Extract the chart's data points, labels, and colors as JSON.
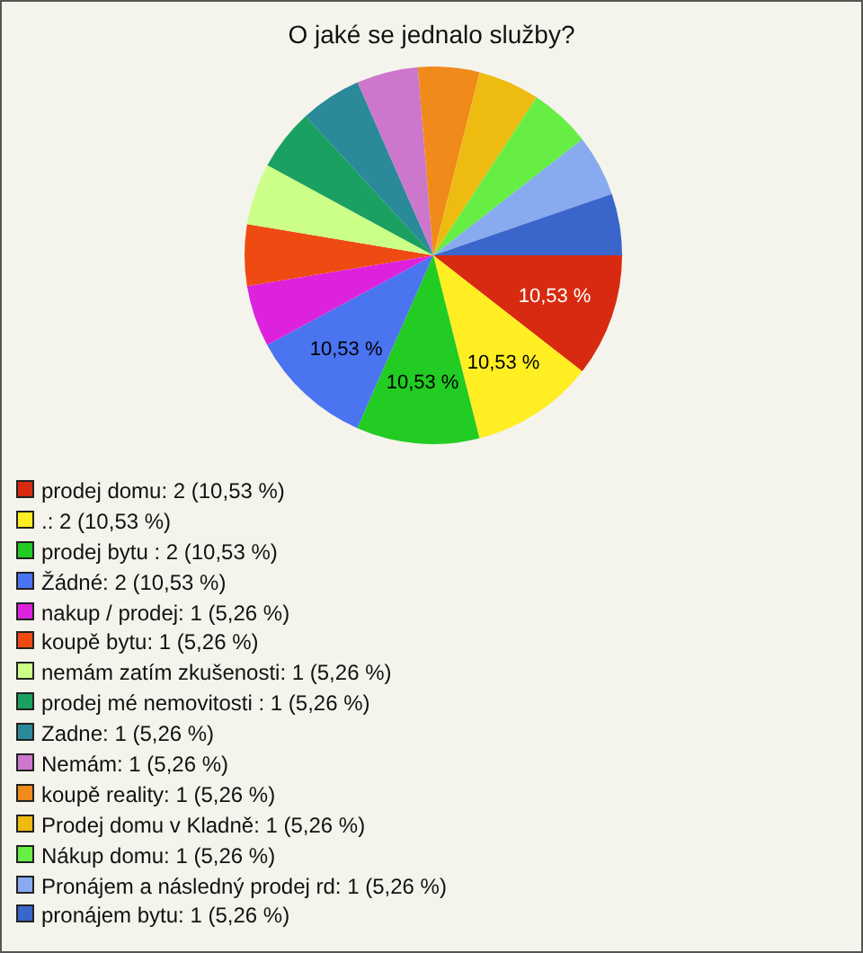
{
  "chart_data": {
    "type": "pie",
    "title": "O jaké se jednalo služby?",
    "categories": [
      "prodej domu: 2 (10,53 %)",
      ".: 2 (10,53 %)",
      "prodej bytu : 2 (10,53 %)",
      "Žádné: 2 (10,53 %)",
      "nakup / prodej: 1 (5,26 %)",
      "koupě bytu: 1 (5,26 %)",
      "nemám zatím zkušenosti: 1 (5,26 %)",
      "prodej mé nemovitosti : 1 (5,26 %)",
      "Zadne: 1 (5,26 %)",
      "Nemám: 1 (5,26 %)",
      "koupě reality: 1 (5,26 %)",
      "Prodej domu v Kladně: 1 (5,26 %)",
      "Nákup domu: 1 (5,26 %)",
      "Pronájem a následný prodej rd: 1 (5,26 %)",
      "pronájem bytu: 1 (5,26 %)"
    ],
    "values": [
      10.53,
      10.53,
      10.53,
      10.53,
      5.26,
      5.26,
      5.26,
      5.26,
      5.26,
      5.26,
      5.26,
      5.26,
      5.26,
      5.26,
      5.26
    ],
    "colors": [
      "#d82a10",
      "#ffee22",
      "#22cc22",
      "#4a74f0",
      "#dd22dd",
      "#ee4a12",
      "#ccff88",
      "#1aa060",
      "#2a8a9a",
      "#cc77cc",
      "#f08a1a",
      "#eebb11",
      "#66ee44",
      "#88aaee",
      "#3a66cc"
    ],
    "value_labels": [
      "10,53 %",
      "10,53 %",
      "10,53 %",
      "10,53 %",
      null,
      null,
      null,
      null,
      null,
      null,
      null,
      null,
      null,
      null,
      null
    ],
    "legend": "bottom left"
  }
}
